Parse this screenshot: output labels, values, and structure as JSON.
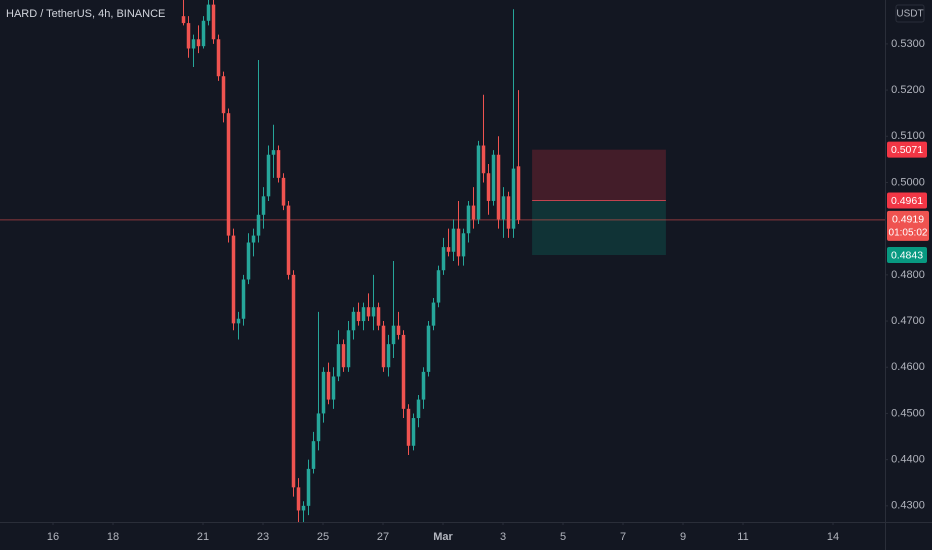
{
  "chart_data": {
    "type": "candlestick",
    "title": "HARD / TetherUS, 4h, BINANCE",
    "currency": "USDT",
    "up_color": "#26a69a",
    "down_color": "#ef5350",
    "x": [
      20.333,
      20.5,
      20.667,
      20.833,
      21,
      21.167,
      21.333,
      21.5,
      21.667,
      21.833,
      22,
      22.167,
      22.333,
      22.5,
      22.667,
      22.833,
      23,
      23.167,
      23.333,
      23.5,
      23.667,
      23.833,
      24,
      24.167,
      24.333,
      24.5,
      24.667,
      24.833,
      25,
      25.167,
      25.333,
      25.5,
      25.667,
      25.833,
      26,
      26.167,
      26.333,
      26.5,
      26.667,
      26.833,
      27,
      27.167,
      27.333,
      27.5,
      27.667,
      27.833,
      28,
      28.167,
      28.333,
      28.5,
      28.667,
      28.833,
      29,
      29.167,
      29.333,
      29.5,
      29.667,
      29.833,
      30,
      30.167,
      30.333,
      30.5,
      30.667,
      30.833,
      31,
      31.167,
      31.333,
      31.5
    ],
    "open": [
      0.536,
      0.5345,
      0.529,
      0.531,
      0.5295,
      0.535,
      0.5385,
      0.531,
      0.523,
      0.515,
      0.4885,
      0.4695,
      0.4705,
      0.479,
      0.487,
      0.4885,
      0.493,
      0.497,
      0.506,
      0.507,
      0.501,
      0.495,
      0.48,
      0.434,
      0.429,
      0.43,
      0.438,
      0.444,
      0.45,
      0.459,
      0.453,
      0.458,
      0.465,
      0.46,
      0.468,
      0.472,
      0.47,
      0.473,
      0.471,
      0.473,
      0.469,
      0.46,
      0.465,
      0.469,
      0.467,
      0.451,
      0.443,
      0.449,
      0.453,
      0.459,
      0.469,
      0.474,
      0.481,
      0.486,
      0.485,
      0.49,
      0.484,
      0.489,
      0.495,
      0.492,
      0.508,
      0.502,
      0.496,
      0.506,
      0.492,
      0.497,
      0.49,
      0.5035
    ],
    "high": [
      0.5395,
      0.536,
      0.532,
      0.534,
      0.536,
      0.5395,
      0.5395,
      0.532,
      0.524,
      0.516,
      0.49,
      0.472,
      0.48,
      0.489,
      0.49,
      0.5265,
      0.499,
      0.508,
      0.5125,
      0.508,
      0.502,
      0.496,
      0.481,
      0.436,
      0.431,
      0.44,
      0.446,
      0.472,
      0.46,
      0.461,
      0.46,
      0.468,
      0.466,
      0.47,
      0.473,
      0.474,
      0.474,
      0.476,
      0.48,
      0.474,
      0.47,
      0.467,
      0.483,
      0.472,
      0.468,
      0.452,
      0.45,
      0.454,
      0.46,
      0.47,
      0.475,
      0.482,
      0.488,
      0.49,
      0.492,
      0.496,
      0.49,
      0.496,
      0.499,
      0.509,
      0.519,
      0.504,
      0.507,
      0.51,
      0.499,
      0.498,
      0.5375,
      0.52
    ],
    "low": [
      0.534,
      0.527,
      0.525,
      0.528,
      0.529,
      0.534,
      0.53,
      0.522,
      0.513,
      0.487,
      0.468,
      0.466,
      0.469,
      0.478,
      0.484,
      0.487,
      0.49,
      0.496,
      0.501,
      0.5,
      0.494,
      0.479,
      0.432,
      0.4265,
      0.4265,
      0.428,
      0.437,
      0.442,
      0.448,
      0.452,
      0.451,
      0.457,
      0.459,
      0.459,
      0.466,
      0.469,
      0.468,
      0.47,
      0.468,
      0.468,
      0.459,
      0.458,
      0.462,
      0.466,
      0.449,
      0.441,
      0.442,
      0.447,
      0.451,
      0.458,
      0.468,
      0.473,
      0.48,
      0.484,
      0.483,
      0.482,
      0.482,
      0.487,
      0.49,
      0.491,
      0.5,
      0.493,
      0.495,
      0.49,
      0.488,
      0.488,
      0.488,
      0.491
    ],
    "close": [
      0.5345,
      0.529,
      0.531,
      0.5295,
      0.535,
      0.5385,
      0.531,
      0.523,
      0.515,
      0.4885,
      0.4695,
      0.4705,
      0.479,
      0.487,
      0.4885,
      0.493,
      0.497,
      0.506,
      0.507,
      0.501,
      0.495,
      0.48,
      0.434,
      0.429,
      0.43,
      0.438,
      0.444,
      0.45,
      0.459,
      0.453,
      0.458,
      0.465,
      0.46,
      0.468,
      0.472,
      0.47,
      0.473,
      0.471,
      0.473,
      0.469,
      0.46,
      0.465,
      0.469,
      0.467,
      0.451,
      0.443,
      0.449,
      0.453,
      0.459,
      0.469,
      0.474,
      0.481,
      0.486,
      0.485,
      0.49,
      0.484,
      0.489,
      0.495,
      0.492,
      0.508,
      0.502,
      0.496,
      0.506,
      0.492,
      0.497,
      0.49,
      0.503,
      0.4919
    ],
    "xlim": [
      14.2333,
      43.7333
    ],
    "xticks": [
      16,
      18,
      21,
      23,
      25,
      27,
      {
        "value": 29,
        "label": "Mar"
      },
      {
        "value": 31,
        "label": "3"
      },
      {
        "value": 33,
        "label": "5"
      },
      {
        "value": 35,
        "label": "7"
      },
      {
        "value": 37,
        "label": "9"
      },
      {
        "value": 39,
        "label": "11"
      },
      {
        "value": 42,
        "label": "14"
      }
    ],
    "ylim": [
      0.4265,
      0.5395
    ],
    "yticks": [
      {
        "value": 0.53,
        "label": "0.5300"
      },
      {
        "value": 0.52,
        "label": "0.5200"
      },
      {
        "value": 0.51,
        "label": "0.5100"
      },
      {
        "value": 0.5,
        "label": "0.5000"
      },
      {
        "value": 0.48,
        "label": "0.4800"
      },
      {
        "value": 0.47,
        "label": "0.4700"
      },
      {
        "value": 0.46,
        "label": "0.4600"
      },
      {
        "value": 0.45,
        "label": "0.4500"
      },
      {
        "value": 0.44,
        "label": "0.4400"
      },
      {
        "value": 0.43,
        "label": "0.4300"
      }
    ],
    "grid": false,
    "position": {
      "x": [
        31.97,
        36.43
      ],
      "stop": 0.5071,
      "stop_label": "0.5071",
      "entry": 0.4961,
      "entry_label": "0.4961",
      "target": 0.4843,
      "target_label": "0.4843"
    },
    "last_price": 0.4919,
    "last_price_label": "0.4919",
    "countdown": "01:05:02"
  }
}
